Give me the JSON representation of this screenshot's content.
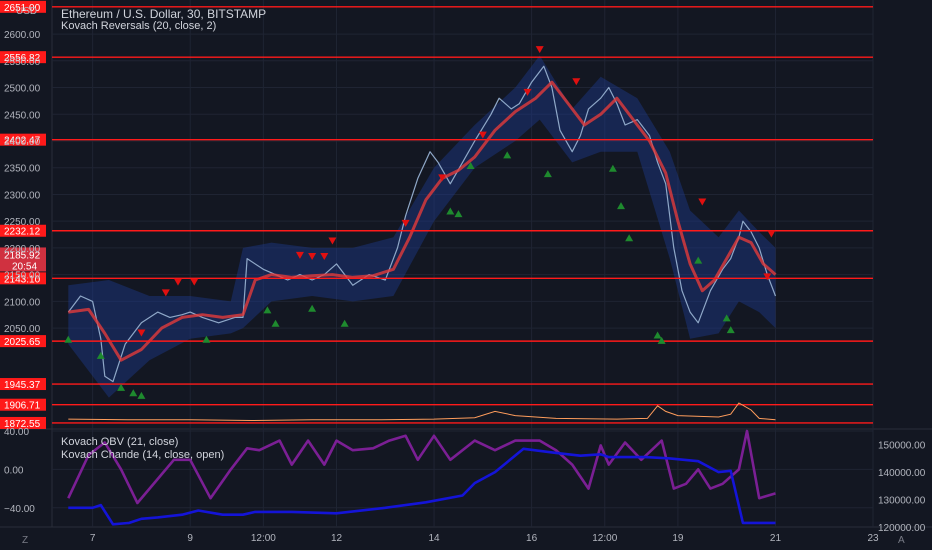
{
  "header": {
    "title": "Ethereum / U.S. Dollar, 30, BITSTAMP",
    "indicator": "Kovach Reversals (20, close, 2)",
    "currency": "USD"
  },
  "lower_pane": {
    "indicator_1": "Kovach OBV (21, close)",
    "indicator_2": "Kovach Chande (14, close, open)"
  },
  "bottom_bar": {
    "left_button": "Z",
    "right_button": "A"
  },
  "colors": {
    "background": "#131722",
    "grid": "#1f2433",
    "level_line": "#ff1a1a",
    "moving_average": "#e23b3b",
    "band_fill": "#1c3a8c",
    "price": "#8fa8c8",
    "obv_line": "#1414d8",
    "chande_line": "#7b1f94",
    "volume_ma": "#ff9d5c",
    "arrow_up": "#1e8a2e",
    "arrow_down": "#e01010",
    "current_price_bg": "#f23645"
  },
  "chart_data": [
    {
      "type": "line",
      "pane": "price",
      "ylim": [
        1865,
        2660
      ],
      "y_ticks": [
        2050,
        2100,
        2150,
        2200,
        2250,
        2300,
        2350,
        2400,
        2450,
        2500,
        2550,
        2600
      ],
      "y_tick_labels": [
        "2050.00",
        "2100.00",
        "2150.00",
        "2200.00",
        "2250.00",
        "2300.00",
        "2350.00",
        "2400.00",
        "2450.00",
        "2500.00",
        "2550.00",
        "2600.00"
      ],
      "x_labels": [
        "7",
        "9",
        "12:00",
        "12",
        "14",
        "16",
        "12:00",
        "19",
        "21",
        "23"
      ],
      "x_label_hours": [
        12,
        60,
        96,
        132,
        180,
        228,
        264,
        300,
        348,
        396
      ],
      "grid": true,
      "levels": [
        1872.55,
        1906.71,
        1945.37,
        2025.65,
        2143.1,
        2232.12,
        2402.47,
        2556.82,
        2651.0
      ],
      "level_labels": [
        "1872.55",
        "1906.71",
        "1945.37",
        "2025.65",
        "2143.10",
        "2232.12",
        "2402.47",
        "2556.82",
        "2651.00"
      ],
      "current_price": {
        "value": 2185.92,
        "label": "2185.92",
        "countdown": "20:54"
      },
      "price_series": {
        "hours": [
          0,
          6,
          12,
          16,
          18,
          22,
          28,
          36,
          44,
          50,
          56,
          60,
          66,
          74,
          82,
          86,
          88,
          96,
          102,
          108,
          114,
          120,
          126,
          132,
          140,
          148,
          156,
          162,
          166,
          172,
          178,
          182,
          188,
          194,
          200,
          208,
          212,
          218,
          222,
          228,
          234,
          238,
          242,
          248,
          252,
          256,
          262,
          266,
          270,
          274,
          280,
          286,
          290,
          294,
          298,
          302,
          306,
          310,
          316,
          322,
          326,
          330,
          332,
          336,
          340,
          344,
          348
        ],
        "values": [
          2080,
          2110,
          2100,
          2030,
          1960,
          1950,
          2020,
          2060,
          2080,
          2070,
          2075,
          2080,
          2070,
          2060,
          2070,
          2070,
          2180,
          2160,
          2150,
          2140,
          2150,
          2140,
          2150,
          2170,
          2130,
          2150,
          2140,
          2200,
          2260,
          2330,
          2380,
          2360,
          2320,
          2360,
          2400,
          2450,
          2480,
          2460,
          2470,
          2510,
          2540,
          2500,
          2420,
          2380,
          2410,
          2460,
          2480,
          2500,
          2470,
          2430,
          2440,
          2410,
          2360,
          2320,
          2200,
          2120,
          2080,
          2060,
          2120,
          2160,
          2180,
          2220,
          2250,
          2230,
          2200,
          2150,
          2110
        ]
      },
      "moving_average": {
        "hours": [
          0,
          10,
          18,
          26,
          36,
          46,
          56,
          66,
          76,
          86,
          92,
          100,
          110,
          120,
          130,
          140,
          150,
          160,
          168,
          176,
          184,
          192,
          200,
          210,
          220,
          230,
          238,
          246,
          254,
          262,
          270,
          278,
          286,
          294,
          300,
          306,
          312,
          318,
          324,
          330,
          336,
          342,
          348
        ],
        "values": [
          2080,
          2085,
          2040,
          1990,
          2010,
          2050,
          2070,
          2075,
          2070,
          2075,
          2140,
          2150,
          2145,
          2148,
          2150,
          2145,
          2148,
          2160,
          2220,
          2290,
          2330,
          2345,
          2370,
          2420,
          2455,
          2480,
          2510,
          2470,
          2430,
          2450,
          2480,
          2440,
          2400,
          2340,
          2250,
          2170,
          2120,
          2140,
          2180,
          2220,
          2210,
          2170,
          2150
        ]
      },
      "band_upper": {
        "hours": [
          0,
          20,
          40,
          60,
          80,
          86,
          100,
          120,
          140,
          160,
          180,
          200,
          220,
          232,
          248,
          262,
          280,
          296,
          306,
          320,
          330,
          340,
          348
        ],
        "values": [
          2130,
          2140,
          2110,
          2110,
          2100,
          2200,
          2210,
          2200,
          2200,
          2220,
          2350,
          2430,
          2500,
          2560,
          2460,
          2520,
          2480,
          2380,
          2270,
          2220,
          2270,
          2230,
          2200
        ]
      },
      "band_lower": {
        "hours": [
          0,
          20,
          40,
          60,
          80,
          86,
          100,
          120,
          140,
          160,
          180,
          200,
          220,
          232,
          248,
          262,
          280,
          296,
          306,
          320,
          330,
          340,
          348
        ],
        "values": [
          2020,
          1920,
          1990,
          2030,
          2040,
          2050,
          2100,
          2110,
          2100,
          2110,
          2250,
          2350,
          2400,
          2440,
          2360,
          2380,
          2380,
          2180,
          2030,
          2040,
          2100,
          2080,
          2050
        ]
      },
      "down_arrows": [
        {
          "hour": 36,
          "value": 2040
        },
        {
          "hour": 48,
          "value": 2115
        },
        {
          "hour": 54,
          "value": 2135
        },
        {
          "hour": 62,
          "value": 2135
        },
        {
          "hour": 114,
          "value": 2185
        },
        {
          "hour": 120,
          "value": 2183
        },
        {
          "hour": 126,
          "value": 2183
        },
        {
          "hour": 130,
          "value": 2212
        },
        {
          "hour": 166,
          "value": 2245
        },
        {
          "hour": 184,
          "value": 2330
        },
        {
          "hour": 204,
          "value": 2410
        },
        {
          "hour": 226,
          "value": 2490
        },
        {
          "hour": 232,
          "value": 2570
        },
        {
          "hour": 250,
          "value": 2510
        },
        {
          "hour": 312,
          "value": 2285
        },
        {
          "hour": 346,
          "value": 2225
        },
        {
          "hour": 344,
          "value": 2145
        }
      ],
      "up_arrows": [
        {
          "hour": 0,
          "value": 2030
        },
        {
          "hour": 16,
          "value": 2000
        },
        {
          "hour": 26,
          "value": 1940
        },
        {
          "hour": 32,
          "value": 1930
        },
        {
          "hour": 36,
          "value": 1925
        },
        {
          "hour": 68,
          "value": 2030
        },
        {
          "hour": 98,
          "value": 2085
        },
        {
          "hour": 102,
          "value": 2060
        },
        {
          "hour": 120,
          "value": 2088
        },
        {
          "hour": 136,
          "value": 2060
        },
        {
          "hour": 188,
          "value": 2270
        },
        {
          "hour": 192,
          "value": 2265
        },
        {
          "hour": 198,
          "value": 2355
        },
        {
          "hour": 216,
          "value": 2375
        },
        {
          "hour": 236,
          "value": 2340
        },
        {
          "hour": 268,
          "value": 2350
        },
        {
          "hour": 272,
          "value": 2280
        },
        {
          "hour": 276,
          "value": 2220
        },
        {
          "hour": 290,
          "value": 2038
        },
        {
          "hour": 292,
          "value": 2028
        },
        {
          "hour": 310,
          "value": 2178
        },
        {
          "hour": 324,
          "value": 2070
        },
        {
          "hour": 326,
          "value": 2048
        }
      ],
      "volume_ma": {
        "hours": [
          0,
          30,
          60,
          90,
          120,
          150,
          180,
          200,
          210,
          220,
          240,
          270,
          285,
          290,
          294,
          300,
          320,
          326,
          330,
          336,
          340,
          348
        ],
        "values": [
          0.35,
          0.3,
          0.3,
          0.25,
          0.3,
          0.3,
          0.35,
          0.45,
          0.9,
          0.6,
          0.4,
          0.35,
          0.4,
          1.3,
          0.9,
          0.6,
          0.5,
          0.7,
          1.5,
          1.0,
          0.4,
          0.3
        ]
      }
    },
    {
      "type": "line",
      "pane": "indicator",
      "left_ylim": [
        -60,
        40
      ],
      "left_ticks": [
        40,
        0,
        -40
      ],
      "left_tick_labels": [
        "40.00",
        "0.00",
        "−40.00"
      ],
      "right_ylim": [
        120000,
        155000
      ],
      "right_ticks": [
        150000,
        140000,
        130000,
        120000
      ],
      "right_tick_labels": [
        "150000.00",
        "140000.00",
        "130000.00",
        "120000.00"
      ],
      "series": [
        {
          "name": "Kovach OBV (21, close)",
          "axis": "right",
          "hours": [
            0,
            12,
            16,
            22,
            30,
            36,
            44,
            56,
            64,
            76,
            86,
            92,
            110,
            132,
            156,
            176,
            194,
            200,
            210,
            224,
            240,
            252,
            262,
            266,
            284,
            296,
            310,
            320,
            326,
            332,
            348
          ],
          "values": [
            127000,
            127000,
            128000,
            121000,
            121500,
            123000,
            123500,
            124500,
            126000,
            124500,
            124500,
            125500,
            125500,
            125000,
            127000,
            129000,
            131500,
            136000,
            140000,
            148500,
            147000,
            146000,
            146500,
            145500,
            145500,
            145000,
            144000,
            140000,
            140500,
            121500,
            121500
          ]
        },
        {
          "name": "Kovach Chande (14, close, open)",
          "axis": "left",
          "hours": [
            0,
            10,
            18,
            26,
            34,
            44,
            52,
            60,
            70,
            80,
            88,
            94,
            104,
            110,
            118,
            126,
            132,
            140,
            150,
            158,
            166,
            172,
            180,
            188,
            200,
            210,
            220,
            232,
            240,
            248,
            256,
            262,
            266,
            274,
            282,
            292,
            298,
            304,
            310,
            316,
            322,
            330,
            334,
            340,
            348
          ],
          "values": [
            -30,
            15,
            28,
            0,
            -35,
            -10,
            10,
            10,
            -30,
            0,
            22,
            20,
            30,
            5,
            30,
            5,
            30,
            20,
            22,
            30,
            35,
            10,
            35,
            10,
            30,
            20,
            30,
            30,
            20,
            5,
            -20,
            25,
            5,
            28,
            10,
            30,
            -20,
            -15,
            0,
            -20,
            -15,
            0,
            40,
            -30,
            -25
          ]
        }
      ]
    }
  ]
}
